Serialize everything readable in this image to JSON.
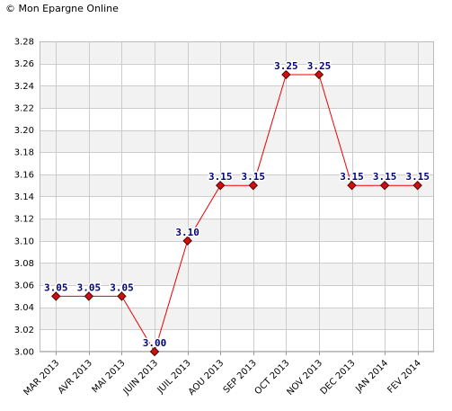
{
  "copyright": "© Mon Epargne Online",
  "colors": {
    "line": "#ee0000",
    "marker_fill": "#cc1111",
    "marker_stroke": "#550000",
    "label": "#00007a",
    "band_alt": "#f2f2f2",
    "grid": "#cccccc"
  },
  "chart_data": {
    "type": "line",
    "title": "",
    "xlabel": "",
    "ylabel": "",
    "ylim": [
      3.0,
      3.28
    ],
    "y_ticks": [
      "3.00",
      "3.02",
      "3.04",
      "3.06",
      "3.08",
      "3.10",
      "3.12",
      "3.14",
      "3.16",
      "3.18",
      "3.20",
      "3.22",
      "3.24",
      "3.26",
      "3.28"
    ],
    "grid": true,
    "legend": "none",
    "categories": [
      "MAR 2013",
      "AVR 2013",
      "MAI 2013",
      "JUIN 2013",
      "JUIL 2013",
      "AOU 2013",
      "SEP 2013",
      "OCT 2013",
      "NOV 2013",
      "DEC 2013",
      "JAN 2014",
      "FEV 2014"
    ],
    "series": [
      {
        "values": [
          3.05,
          3.05,
          3.05,
          3.0,
          3.1,
          3.15,
          3.15,
          3.25,
          3.25,
          3.15,
          3.15,
          3.15
        ],
        "labels": [
          "3.05",
          "3.05",
          "3.05",
          "3.00",
          "3.10",
          "3.15",
          "3.15",
          "3.25",
          "3.25",
          "3.15",
          "3.15",
          "3.15"
        ]
      }
    ]
  }
}
